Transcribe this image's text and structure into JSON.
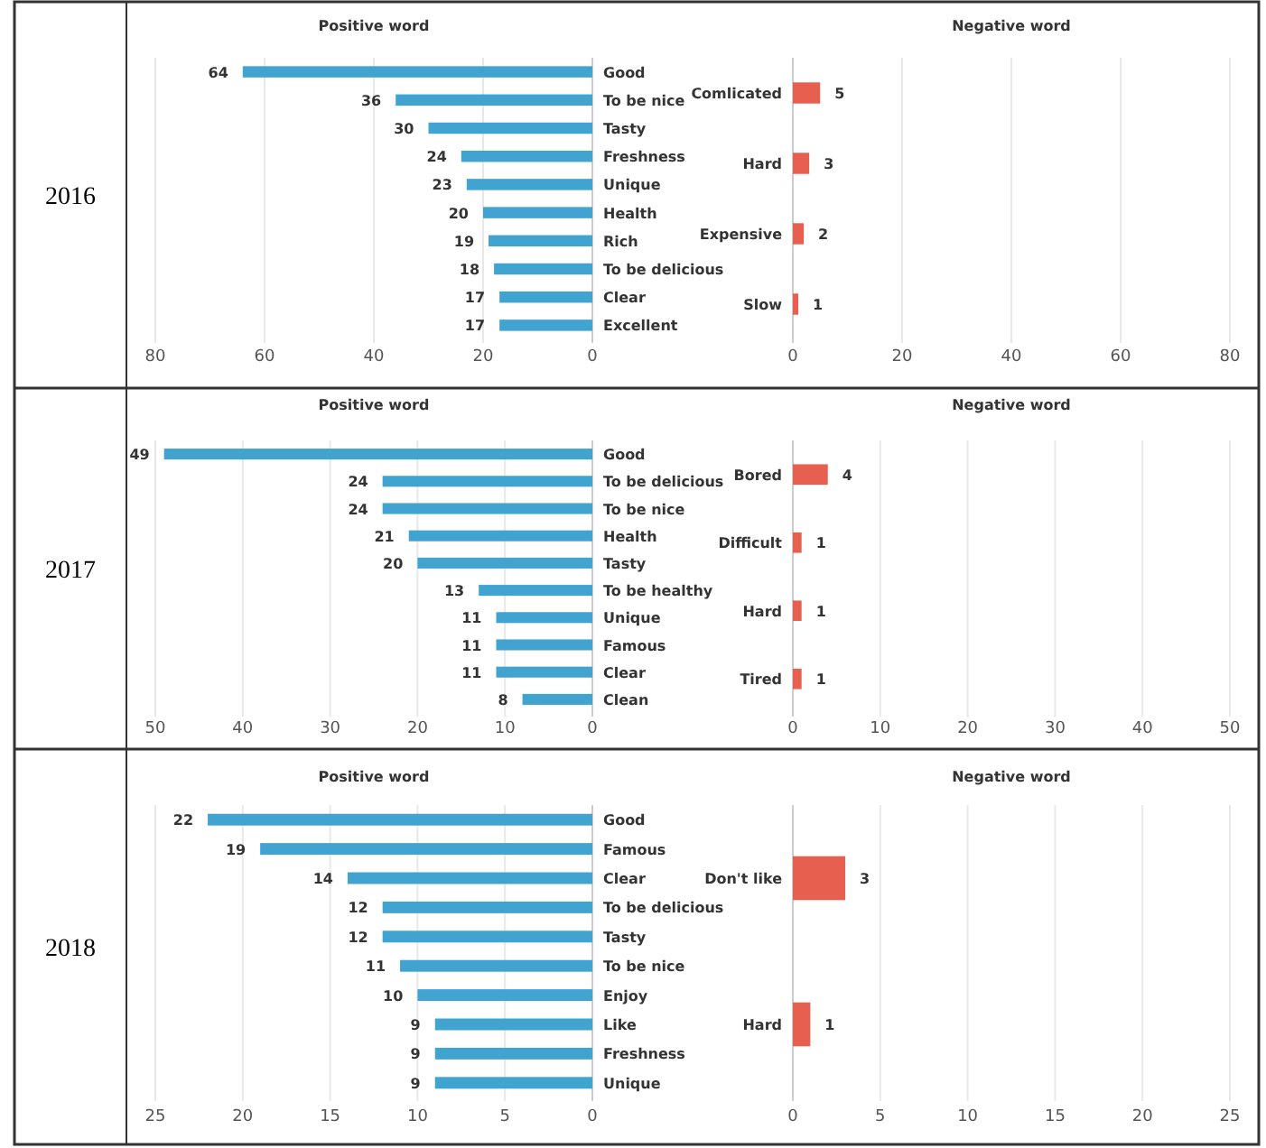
{
  "chart_data": [
    {
      "type": "bar",
      "orientation": "horizontal",
      "title": "Positive word",
      "annotations": [
        "2016"
      ],
      "categories": [
        "Good",
        "To be nice",
        "Tasty",
        "Freshness",
        "Unique",
        "Health",
        "Rich",
        "To be delicious",
        "Clear",
        "Excellent"
      ],
      "values": [
        64,
        36,
        30,
        24,
        23,
        20,
        19,
        18,
        17,
        17
      ],
      "color": "#41a3cf",
      "xlim": [
        80,
        0
      ],
      "xticks": [
        80,
        60,
        40,
        20,
        0
      ],
      "grid": "x",
      "data_labels": true
    },
    {
      "type": "bar",
      "orientation": "horizontal",
      "title": "Negative word",
      "categories": [
        "Comlicated",
        "Hard",
        "Expensive",
        "Slow"
      ],
      "values": [
        5,
        3,
        2,
        1
      ],
      "color": "#e65f4f",
      "xlim": [
        0,
        80
      ],
      "xticks": [
        0,
        20,
        40,
        60,
        80
      ],
      "grid": "x",
      "data_labels": true
    },
    {
      "type": "bar",
      "orientation": "horizontal",
      "title": "Positive word",
      "annotations": [
        "2017"
      ],
      "categories": [
        "Good",
        "To be delicious",
        "To be nice",
        "Health",
        "Tasty",
        "To be healthy",
        "Unique",
        "Famous",
        "Clear",
        "Clean"
      ],
      "values": [
        49,
        24,
        24,
        21,
        20,
        13,
        11,
        11,
        11,
        8
      ],
      "color": "#41a3cf",
      "xlim": [
        50,
        0
      ],
      "xticks": [
        50,
        40,
        30,
        20,
        10,
        0
      ],
      "grid": "x",
      "data_labels": true
    },
    {
      "type": "bar",
      "orientation": "horizontal",
      "title": "Negative word",
      "categories": [
        "Bored",
        "Difficult",
        "Hard",
        "Tired"
      ],
      "values": [
        4,
        1,
        1,
        1
      ],
      "color": "#e65f4f",
      "xlim": [
        0,
        50
      ],
      "xticks": [
        0,
        10,
        20,
        30,
        40,
        50
      ],
      "grid": "x",
      "data_labels": true
    },
    {
      "type": "bar",
      "orientation": "horizontal",
      "title": "Positive word",
      "annotations": [
        "2018"
      ],
      "categories": [
        "Good",
        "Famous",
        "Clear",
        "To be delicious",
        "Tasty",
        "To be nice",
        "Enjoy",
        "Like",
        "Freshness",
        "Unique"
      ],
      "values": [
        22,
        19,
        14,
        12,
        12,
        11,
        10,
        9,
        9,
        9
      ],
      "color": "#41a3cf",
      "xlim": [
        25,
        0
      ],
      "xticks": [
        25,
        20,
        15,
        10,
        5,
        0
      ],
      "grid": "x",
      "data_labels": true
    },
    {
      "type": "bar",
      "orientation": "horizontal",
      "title": "Negative word",
      "categories": [
        "Don't like",
        "Hard"
      ],
      "values": [
        3,
        1
      ],
      "color": "#e65f4f",
      "xlim": [
        0,
        25
      ],
      "xticks": [
        0,
        5,
        10,
        15,
        20,
        25
      ],
      "grid": "x",
      "data_labels": true
    }
  ]
}
